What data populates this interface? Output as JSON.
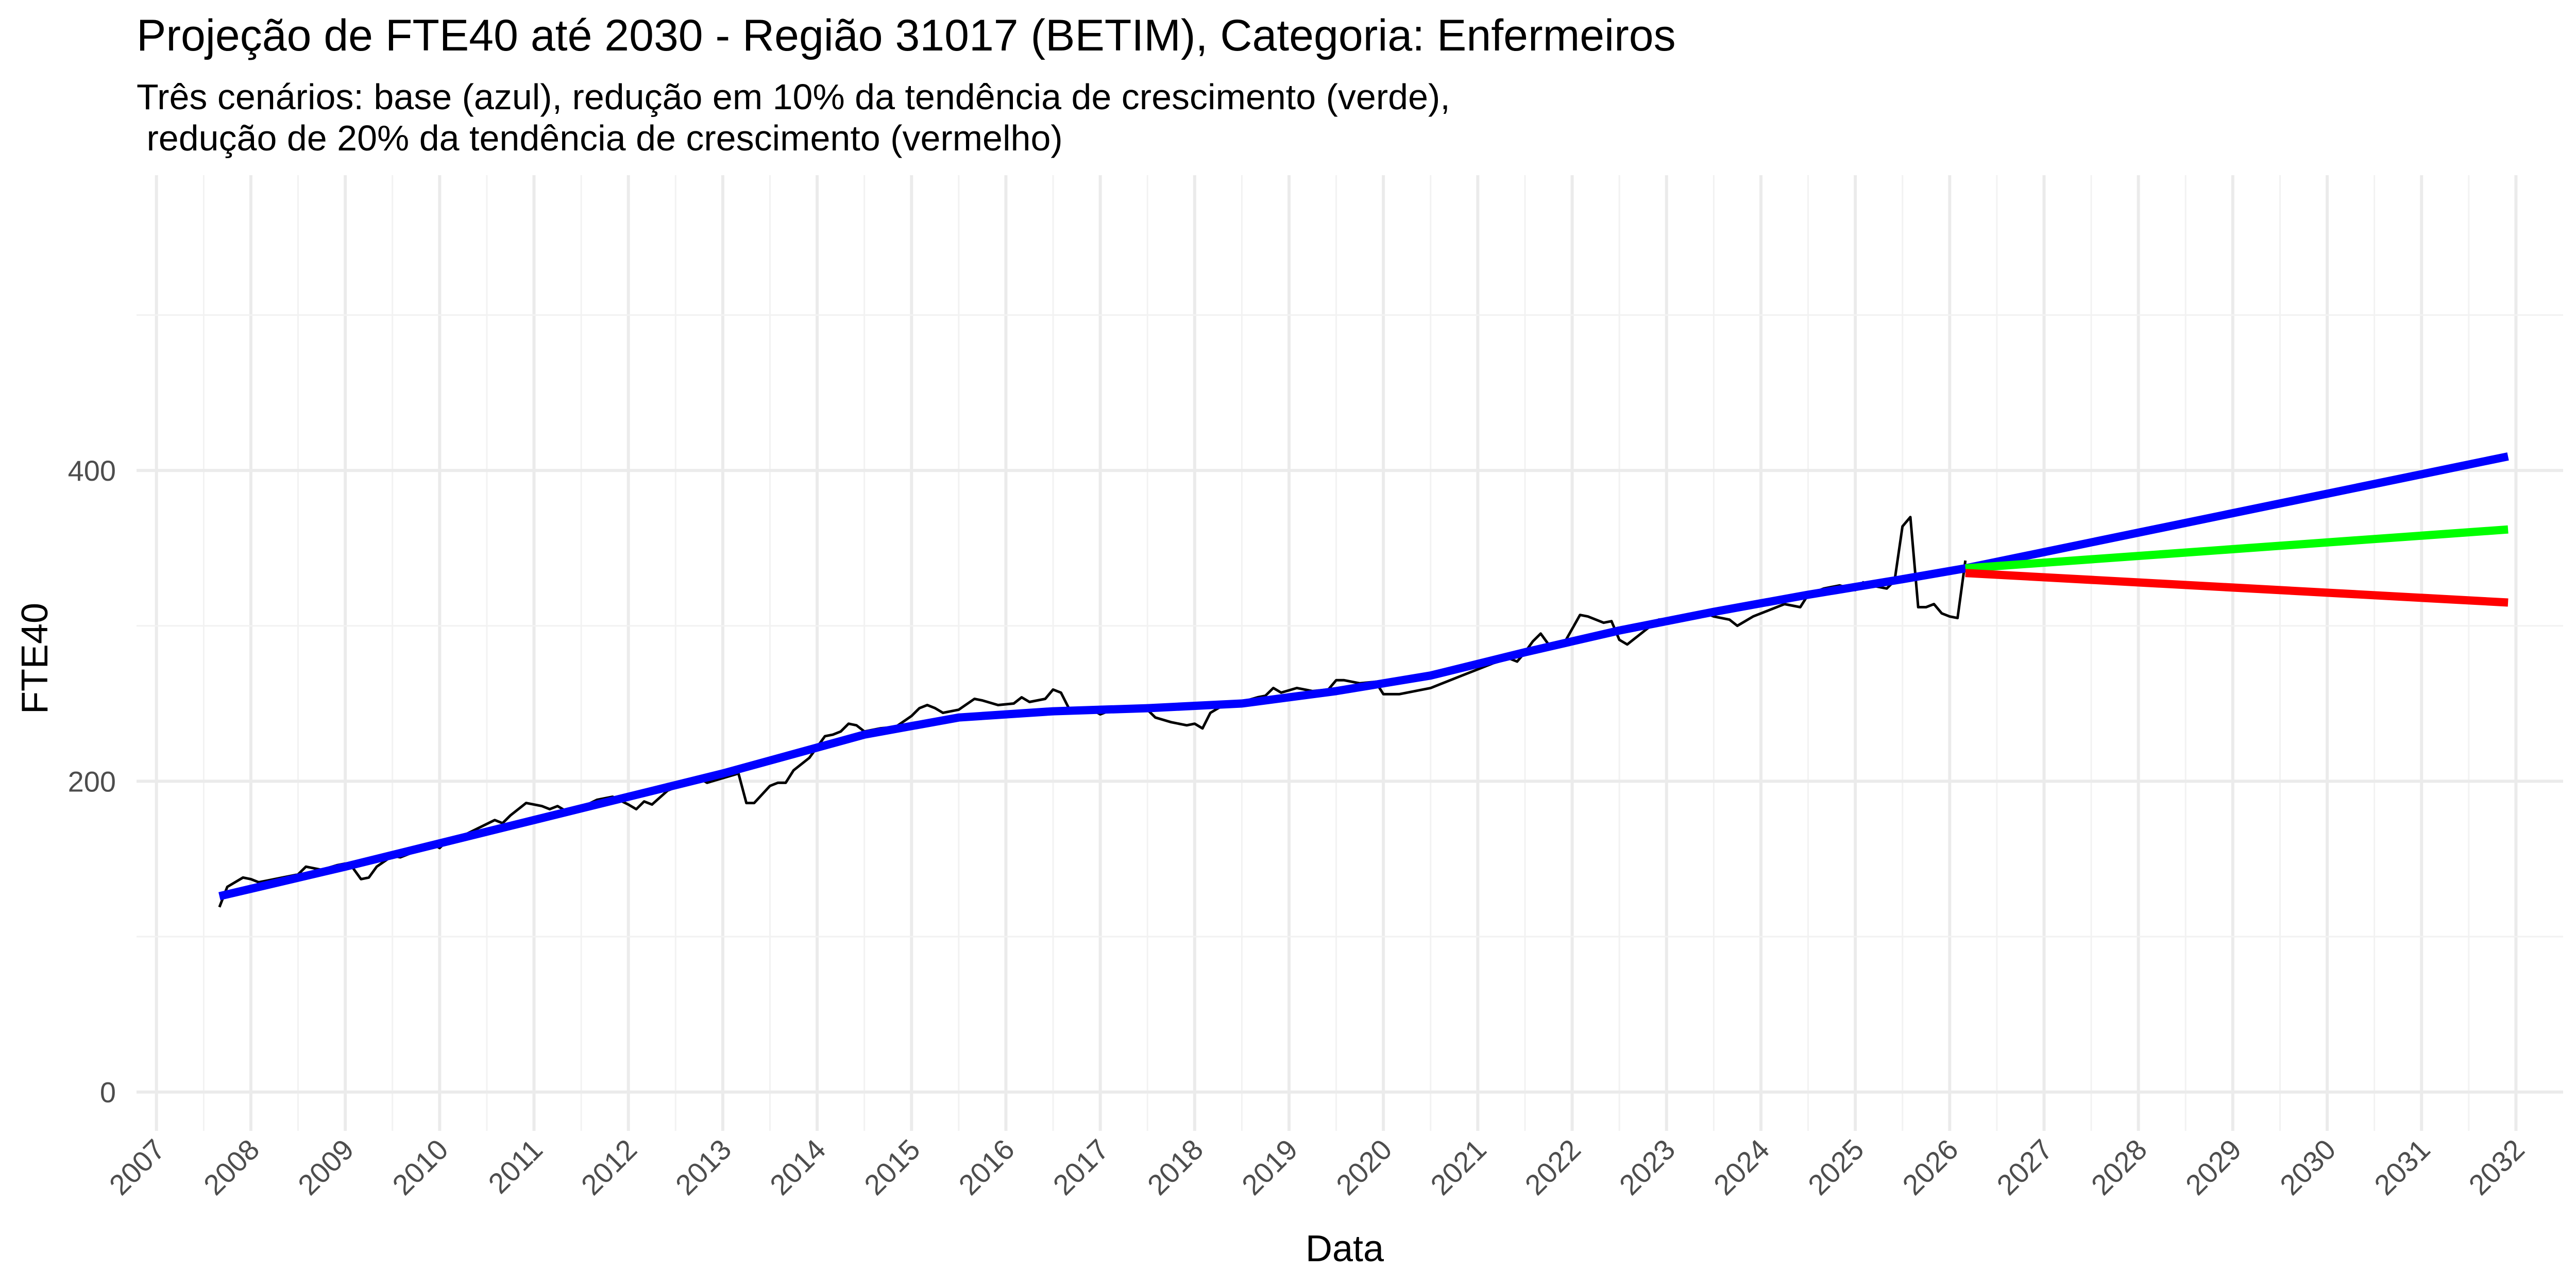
{
  "chart_data": {
    "type": "line",
    "title": "Projeção de FTE40 até 2030 - Região 31017 (BETIM), Categoria: Enfermeiros",
    "subtitle_lines": [
      "Três cenários: base (azul), redução em 10% da tendência de crescimento (verde),",
      " redução de 20% da tendência de crescimento (vermelho)"
    ],
    "xlabel": "Data",
    "ylabel": "FTE40",
    "x_ticks": [
      "2007",
      "2008",
      "2009",
      "2010",
      "2011",
      "2012",
      "2013",
      "2014",
      "2015",
      "2016",
      "2017",
      "2018",
      "2019",
      "2020",
      "2021",
      "2022",
      "2023",
      "2024",
      "2025",
      "2026",
      "2027",
      "2028",
      "2029",
      "2030",
      "2031",
      "2032"
    ],
    "y_ticks": [
      "0",
      "200",
      "400"
    ],
    "ylim": [
      -25,
      590
    ],
    "xlim": [
      "2006-10-15",
      "2032-07-01"
    ],
    "grid": true,
    "legend": "none",
    "series": [
      {
        "color": "#000000",
        "line_width": 5,
        "points": [
          [
            "2007-09-01",
            119
          ],
          [
            "2007-10-01",
            132
          ],
          [
            "2007-11-01",
            135
          ],
          [
            "2007-12-01",
            138
          ],
          [
            "2008-01-01",
            137
          ],
          [
            "2008-02-01",
            135
          ],
          [
            "2008-03-01",
            136
          ],
          [
            "2008-05-01",
            138
          ],
          [
            "2008-07-01",
            140
          ],
          [
            "2008-08-01",
            145
          ],
          [
            "2008-10-01",
            143
          ],
          [
            "2008-12-01",
            146
          ],
          [
            "2009-01-01",
            147
          ],
          [
            "2009-02-01",
            144
          ],
          [
            "2009-03-01",
            137
          ],
          [
            "2009-04-01",
            138
          ],
          [
            "2009-05-01",
            145
          ],
          [
            "2009-07-01",
            152
          ],
          [
            "2009-08-01",
            151
          ],
          [
            "2009-10-01",
            155
          ],
          [
            "2009-12-01",
            160
          ],
          [
            "2010-01-01",
            157
          ],
          [
            "2010-02-01",
            162
          ],
          [
            "2010-04-01",
            165
          ],
          [
            "2010-06-01",
            170
          ],
          [
            "2010-08-01",
            175
          ],
          [
            "2010-09-01",
            173
          ],
          [
            "2010-10-01",
            178
          ],
          [
            "2010-12-01",
            186
          ],
          [
            "2011-02-01",
            184
          ],
          [
            "2011-03-01",
            182
          ],
          [
            "2011-04-01",
            184
          ],
          [
            "2011-05-01",
            181
          ],
          [
            "2011-07-01",
            183
          ],
          [
            "2011-09-01",
            188
          ],
          [
            "2011-11-01",
            190
          ],
          [
            "2012-01-01",
            185
          ],
          [
            "2012-02-01",
            182
          ],
          [
            "2012-03-01",
            187
          ],
          [
            "2012-04-01",
            185
          ],
          [
            "2012-06-01",
            194
          ],
          [
            "2012-08-01",
            198
          ],
          [
            "2012-10-01",
            202
          ],
          [
            "2012-11-01",
            199
          ],
          [
            "2013-01-01",
            202
          ],
          [
            "2013-03-01",
            205
          ],
          [
            "2013-04-01",
            186
          ],
          [
            "2013-05-01",
            186
          ],
          [
            "2013-07-01",
            197
          ],
          [
            "2013-08-01",
            199
          ],
          [
            "2013-09-01",
            199
          ],
          [
            "2013-10-01",
            207
          ],
          [
            "2013-12-01",
            215
          ],
          [
            "2014-02-01",
            229
          ],
          [
            "2014-03-01",
            230
          ],
          [
            "2014-04-01",
            232
          ],
          [
            "2014-05-01",
            237
          ],
          [
            "2014-06-01",
            236
          ],
          [
            "2014-07-01",
            232
          ],
          [
            "2014-09-01",
            234
          ],
          [
            "2014-11-01",
            235
          ],
          [
            "2015-01-01",
            242
          ],
          [
            "2015-02-01",
            247
          ],
          [
            "2015-03-01",
            249
          ],
          [
            "2015-04-01",
            247
          ],
          [
            "2015-05-01",
            244
          ],
          [
            "2015-07-01",
            246
          ],
          [
            "2015-09-01",
            253
          ],
          [
            "2015-10-01",
            252
          ],
          [
            "2015-12-01",
            249
          ],
          [
            "2016-02-01",
            250
          ],
          [
            "2016-03-01",
            254
          ],
          [
            "2016-04-01",
            251
          ],
          [
            "2016-06-01",
            253
          ],
          [
            "2016-07-01",
            259
          ],
          [
            "2016-08-01",
            257
          ],
          [
            "2016-09-01",
            247
          ],
          [
            "2016-10-01",
            245
          ],
          [
            "2016-12-01",
            246
          ],
          [
            "2017-01-01",
            243
          ],
          [
            "2017-03-01",
            247
          ],
          [
            "2017-05-01",
            246
          ],
          [
            "2017-07-01",
            246
          ],
          [
            "2017-08-01",
            241
          ],
          [
            "2017-10-01",
            238
          ],
          [
            "2017-12-01",
            236
          ],
          [
            "2018-01-01",
            237
          ],
          [
            "2018-02-01",
            234
          ],
          [
            "2018-03-01",
            244
          ],
          [
            "2018-05-01",
            250
          ],
          [
            "2018-07-01",
            251
          ],
          [
            "2018-09-01",
            254
          ],
          [
            "2018-10-01",
            255
          ],
          [
            "2018-11-01",
            260
          ],
          [
            "2018-12-01",
            257
          ],
          [
            "2019-02-01",
            260
          ],
          [
            "2019-04-01",
            258
          ],
          [
            "2019-06-01",
            259
          ],
          [
            "2019-07-01",
            265
          ],
          [
            "2019-08-01",
            265
          ],
          [
            "2019-10-01",
            263
          ],
          [
            "2019-12-01",
            264
          ],
          [
            "2020-01-01",
            256
          ],
          [
            "2020-03-01",
            256
          ],
          [
            "2020-05-01",
            258
          ],
          [
            "2020-07-01",
            260
          ],
          [
            "2020-09-01",
            264
          ],
          [
            "2020-11-01",
            268
          ],
          [
            "2021-01-01",
            272
          ],
          [
            "2021-03-01",
            276
          ],
          [
            "2021-05-01",
            279
          ],
          [
            "2021-06-01",
            277
          ],
          [
            "2021-07-01",
            283
          ],
          [
            "2021-08-01",
            290
          ],
          [
            "2021-09-01",
            295
          ],
          [
            "2021-10-01",
            288
          ],
          [
            "2021-12-01",
            289
          ],
          [
            "2022-02-01",
            307
          ],
          [
            "2022-03-01",
            306
          ],
          [
            "2022-05-01",
            302
          ],
          [
            "2022-06-01",
            303
          ],
          [
            "2022-07-01",
            291
          ],
          [
            "2022-08-01",
            288
          ],
          [
            "2022-10-01",
            296
          ],
          [
            "2022-12-01",
            304
          ],
          [
            "2023-02-01",
            305
          ],
          [
            "2023-04-01",
            307
          ],
          [
            "2023-06-01",
            308
          ],
          [
            "2023-07-01",
            306
          ],
          [
            "2023-09-01",
            304
          ],
          [
            "2023-10-01",
            300
          ],
          [
            "2023-12-01",
            306
          ],
          [
            "2024-02-01",
            310
          ],
          [
            "2024-04-01",
            314
          ],
          [
            "2024-06-01",
            312
          ],
          [
            "2024-07-01",
            320
          ],
          [
            "2024-09-01",
            324
          ],
          [
            "2024-11-01",
            326
          ],
          [
            "2025-01-01",
            323
          ],
          [
            "2025-02-01",
            328
          ],
          [
            "2025-03-01",
            326
          ],
          [
            "2025-05-01",
            324
          ],
          [
            "2025-06-01",
            329
          ],
          [
            "2025-07-01",
            364
          ],
          [
            "2025-08-01",
            370
          ],
          [
            "2025-09-01",
            312
          ],
          [
            "2025-10-01",
            312
          ],
          [
            "2025-11-01",
            314
          ],
          [
            "2025-12-01",
            308
          ],
          [
            "2026-01-01",
            306
          ],
          [
            "2026-02-01",
            305
          ],
          [
            "2026-03-01",
            342
          ]
        ]
      },
      {
        "name": "base (azul)",
        "color": "#0000ff",
        "line_width": 16,
        "points": [
          [
            "2007-09-01",
            126
          ],
          [
            "2009-01-01",
            145
          ],
          [
            "2011-01-01",
            175
          ],
          [
            "2013-01-01",
            205
          ],
          [
            "2014-07-01",
            230
          ],
          [
            "2015-07-01",
            241
          ],
          [
            "2016-07-01",
            245
          ],
          [
            "2017-07-01",
            247
          ],
          [
            "2018-07-01",
            250
          ],
          [
            "2019-07-01",
            258
          ],
          [
            "2020-07-01",
            268
          ],
          [
            "2021-07-01",
            283
          ],
          [
            "2022-07-01",
            297
          ],
          [
            "2023-07-01",
            309
          ],
          [
            "2024-07-01",
            320
          ],
          [
            "2025-07-01",
            330
          ],
          [
            "2026-03-01",
            337
          ],
          [
            "2031-12-01",
            409
          ]
        ]
      },
      {
        "name": "redução em 10% da tendência de crescimento (verde)",
        "color": "#00ff00",
        "line_width": 16,
        "points": [
          [
            "2026-03-01",
            337
          ],
          [
            "2031-12-01",
            362
          ]
        ]
      },
      {
        "name": "redução de 20% da tendência de crescimento (vermelho)",
        "color": "#ff0000",
        "line_width": 16,
        "points": [
          [
            "2026-03-01",
            334
          ],
          [
            "2031-12-01",
            315
          ]
        ]
      }
    ]
  }
}
